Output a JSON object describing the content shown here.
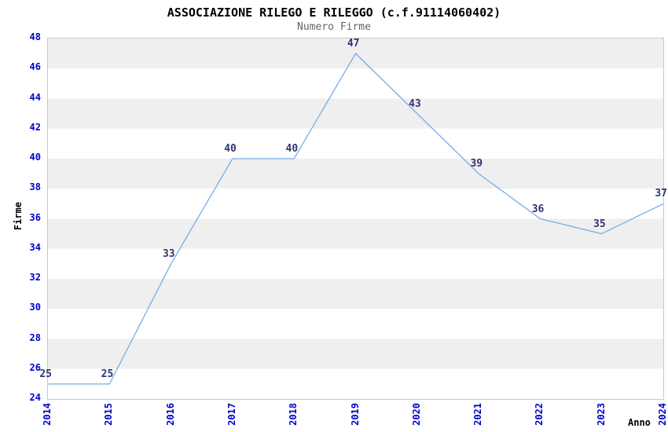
{
  "chart_data": {
    "type": "line",
    "title": "ASSOCIAZIONE RILEGO E RILEGGO (c.f.91114060402)",
    "subtitle": "Numero Firme",
    "xlabel": "Anno",
    "ylabel": "Firme",
    "categories": [
      "2014",
      "2015",
      "2016",
      "2017",
      "2018",
      "2019",
      "2020",
      "2021",
      "2022",
      "2023",
      "2024"
    ],
    "values": [
      25,
      25,
      33,
      40,
      40,
      47,
      43,
      39,
      36,
      35,
      37
    ],
    "ylim": [
      24,
      48
    ],
    "ytick_step": 2,
    "grid": "horizontal-bands",
    "legend": "none",
    "colors": {
      "line": "#79ADE5",
      "axis_tick_labels": "#0000CC",
      "data_labels": "#333377",
      "band_fill": "#EFEFEF",
      "plot_border": "#C9C9C9",
      "title": "#000000",
      "subtitle": "#666666",
      "axis_titles": "#000000"
    }
  }
}
